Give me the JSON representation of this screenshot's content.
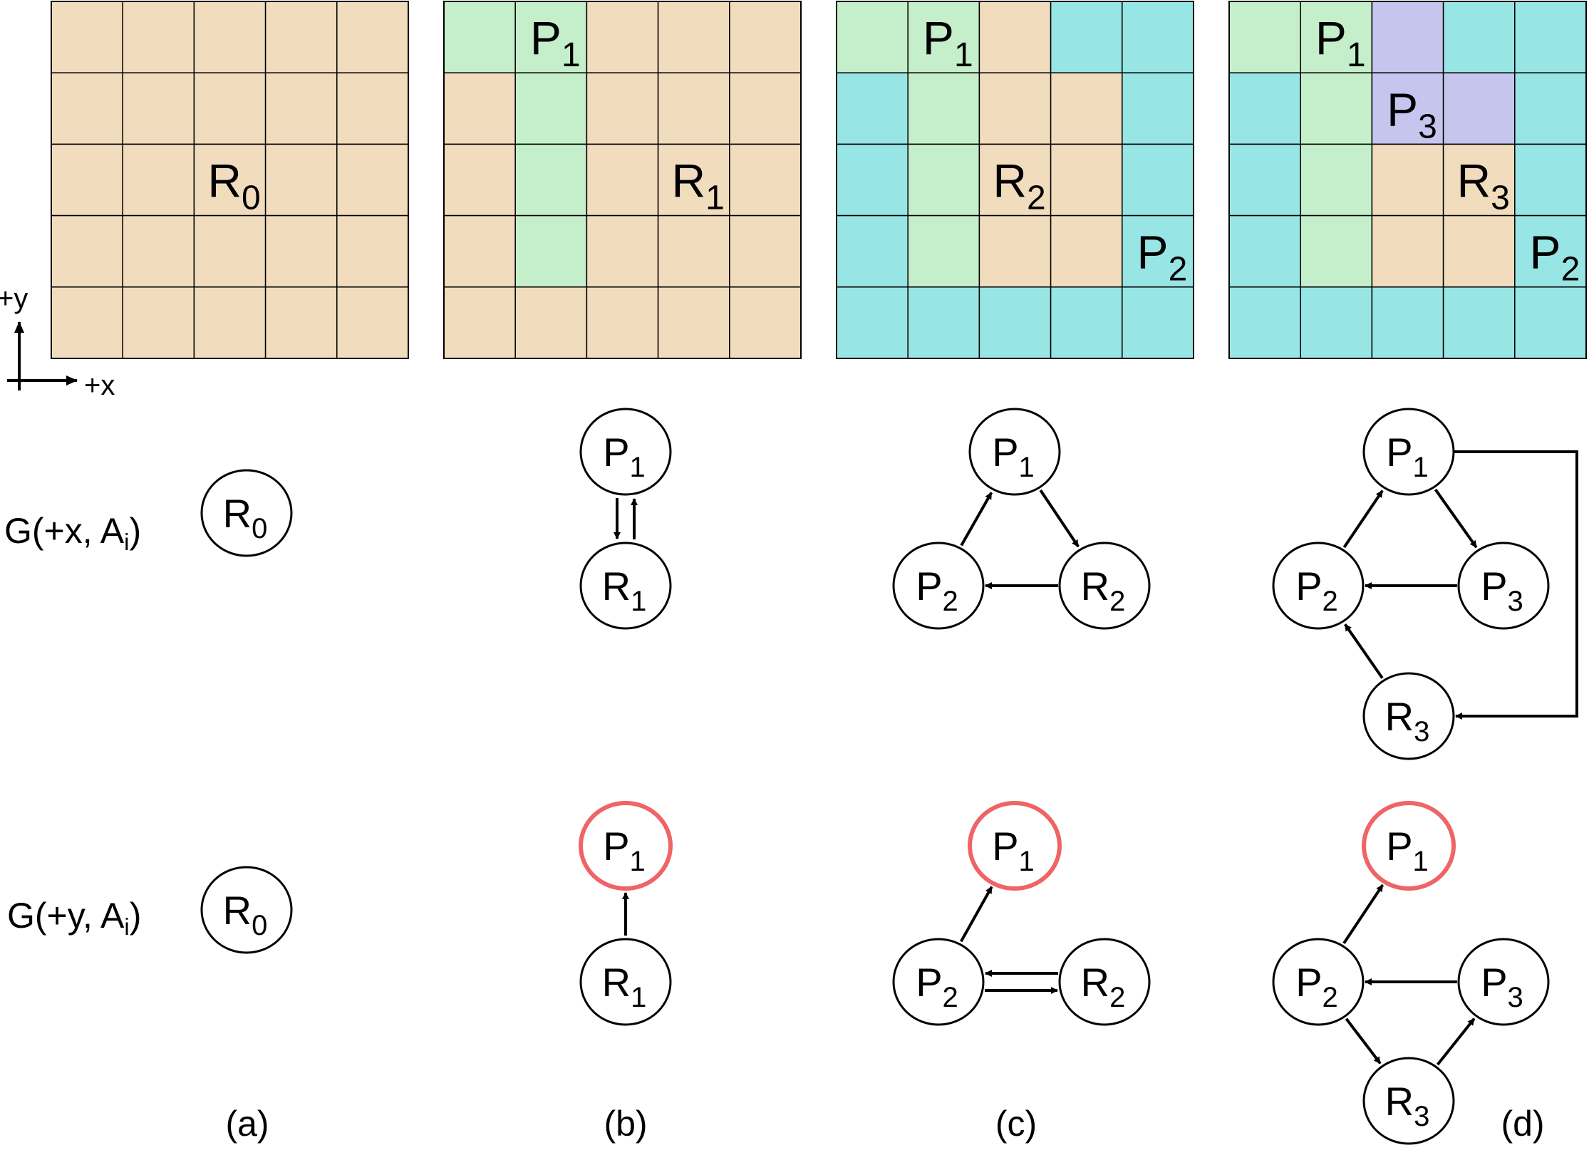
{
  "colors": {
    "beige": "#f1dcbd",
    "green": "#c5efca",
    "cyan": "#98e5e5",
    "lavender": "#c6c5ee",
    "grid_line": "#000000",
    "node_stroke": "#000000",
    "highlight_stroke": "#ef6466",
    "background": "#ffffff"
  },
  "axes": {
    "y_label": "+y",
    "x_label": "+x"
  },
  "row_labels": {
    "gx": {
      "prefix": "G(+x, A",
      "sub": "i",
      "suffix": ")"
    },
    "gy": {
      "prefix": "G(+y, A",
      "sub": "i",
      "suffix": ")"
    }
  },
  "panel_labels": [
    "(a)",
    "(b)",
    "(c)",
    "(d)"
  ],
  "grids": [
    {
      "colors": [
        [
          "beige",
          "beige",
          "beige",
          "beige",
          "beige"
        ],
        [
          "beige",
          "beige",
          "beige",
          "beige",
          "beige"
        ],
        [
          "beige",
          "beige",
          "beige",
          "beige",
          "beige"
        ],
        [
          "beige",
          "beige",
          "beige",
          "beige",
          "beige"
        ],
        [
          "beige",
          "beige",
          "beige",
          "beige",
          "beige"
        ]
      ],
      "labels": [
        {
          "base": "R",
          "sub": "0",
          "row": 2,
          "col": 2
        }
      ]
    },
    {
      "colors": [
        [
          "green",
          "green",
          "beige",
          "beige",
          "beige"
        ],
        [
          "beige",
          "green",
          "beige",
          "beige",
          "beige"
        ],
        [
          "beige",
          "green",
          "beige",
          "beige",
          "beige"
        ],
        [
          "beige",
          "green",
          "beige",
          "beige",
          "beige"
        ],
        [
          "beige",
          "beige",
          "beige",
          "beige",
          "beige"
        ]
      ],
      "labels": [
        {
          "base": "P",
          "sub": "1",
          "row": 0,
          "col": 1
        },
        {
          "base": "R",
          "sub": "1",
          "row": 2,
          "col": 3
        }
      ]
    },
    {
      "colors": [
        [
          "green",
          "green",
          "beige",
          "cyan",
          "cyan"
        ],
        [
          "cyan",
          "green",
          "beige",
          "beige",
          "cyan"
        ],
        [
          "cyan",
          "green",
          "beige",
          "beige",
          "cyan"
        ],
        [
          "cyan",
          "green",
          "beige",
          "beige",
          "cyan"
        ],
        [
          "cyan",
          "cyan",
          "cyan",
          "cyan",
          "cyan"
        ]
      ],
      "labels": [
        {
          "base": "P",
          "sub": "1",
          "row": 0,
          "col": 1
        },
        {
          "base": "R",
          "sub": "2",
          "row": 2,
          "col": 2
        },
        {
          "base": "P",
          "sub": "2",
          "row": 3,
          "col": 4
        }
      ]
    },
    {
      "colors": [
        [
          "green",
          "green",
          "lavender",
          "cyan",
          "cyan"
        ],
        [
          "cyan",
          "green",
          "lavender",
          "lavender",
          "cyan"
        ],
        [
          "cyan",
          "green",
          "beige",
          "beige",
          "cyan"
        ],
        [
          "cyan",
          "green",
          "beige",
          "beige",
          "cyan"
        ],
        [
          "cyan",
          "cyan",
          "cyan",
          "cyan",
          "cyan"
        ]
      ],
      "labels": [
        {
          "base": "P",
          "sub": "1",
          "row": 0,
          "col": 1
        },
        {
          "base": "P",
          "sub": "3",
          "row": 1,
          "col": 2
        },
        {
          "base": "R",
          "sub": "3",
          "row": 2,
          "col": 3
        },
        {
          "base": "P",
          "sub": "2",
          "row": 3,
          "col": 4
        }
      ]
    }
  ],
  "graphs": {
    "gx": [
      {
        "nodes": [
          {
            "id": "R0",
            "base": "R",
            "sub": "0"
          }
        ],
        "edges": []
      },
      {
        "nodes": [
          {
            "id": "P1",
            "base": "P",
            "sub": "1"
          },
          {
            "id": "R1",
            "base": "R",
            "sub": "1"
          }
        ],
        "edges": [
          {
            "from": "P1",
            "to": "R1"
          },
          {
            "from": "R1",
            "to": "P1"
          }
        ]
      },
      {
        "nodes": [
          {
            "id": "P1",
            "base": "P",
            "sub": "1"
          },
          {
            "id": "P2",
            "base": "P",
            "sub": "2"
          },
          {
            "id": "R2",
            "base": "R",
            "sub": "2"
          }
        ],
        "edges": [
          {
            "from": "P2",
            "to": "P1"
          },
          {
            "from": "P1",
            "to": "R2"
          },
          {
            "from": "R2",
            "to": "P2"
          }
        ]
      },
      {
        "nodes": [
          {
            "id": "P1",
            "base": "P",
            "sub": "1"
          },
          {
            "id": "P2",
            "base": "P",
            "sub": "2"
          },
          {
            "id": "P3",
            "base": "P",
            "sub": "3"
          },
          {
            "id": "R3",
            "base": "R",
            "sub": "3"
          }
        ],
        "edges": [
          {
            "from": "P2",
            "to": "P1"
          },
          {
            "from": "P1",
            "to": "P3"
          },
          {
            "from": "P3",
            "to": "P2"
          },
          {
            "from": "R3",
            "to": "P2"
          },
          {
            "from": "P1",
            "to": "R3"
          }
        ]
      }
    ],
    "gy": [
      {
        "nodes": [
          {
            "id": "R0",
            "base": "R",
            "sub": "0"
          }
        ],
        "edges": []
      },
      {
        "nodes": [
          {
            "id": "P1",
            "base": "P",
            "sub": "1",
            "highlight": true
          },
          {
            "id": "R1",
            "base": "R",
            "sub": "1"
          }
        ],
        "edges": [
          {
            "from": "R1",
            "to": "P1"
          }
        ]
      },
      {
        "nodes": [
          {
            "id": "P1",
            "base": "P",
            "sub": "1",
            "highlight": true
          },
          {
            "id": "P2",
            "base": "P",
            "sub": "2"
          },
          {
            "id": "R2",
            "base": "R",
            "sub": "2"
          }
        ],
        "edges": [
          {
            "from": "P2",
            "to": "P1"
          },
          {
            "from": "P2",
            "to": "R2"
          },
          {
            "from": "R2",
            "to": "P2"
          }
        ]
      },
      {
        "nodes": [
          {
            "id": "P1",
            "base": "P",
            "sub": "1",
            "highlight": true
          },
          {
            "id": "P2",
            "base": "P",
            "sub": "2"
          },
          {
            "id": "P3",
            "base": "P",
            "sub": "3"
          },
          {
            "id": "R3",
            "base": "R",
            "sub": "3"
          }
        ],
        "edges": [
          {
            "from": "P2",
            "to": "P1"
          },
          {
            "from": "P3",
            "to": "P2"
          },
          {
            "from": "P2",
            "to": "R3"
          },
          {
            "from": "R3",
            "to": "P3"
          }
        ]
      }
    ]
  }
}
